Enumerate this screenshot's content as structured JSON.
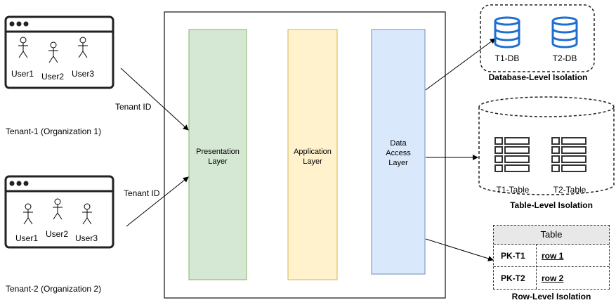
{
  "tenants": [
    {
      "users": [
        "User1",
        "User2",
        "User3"
      ],
      "label": "Tenant-1 (Organization 1)",
      "edge_label": "Tenant ID"
    },
    {
      "users": [
        "User1",
        "User2",
        "User3"
      ],
      "label": "Tenant-2 (Organization 2)",
      "edge_label": "Tenant ID"
    }
  ],
  "layers": {
    "presentation": [
      "Presentation",
      "Layer"
    ],
    "application": [
      "Application",
      "Layer"
    ],
    "data_access": [
      "Data",
      "Access",
      "Layer"
    ]
  },
  "colors": {
    "presentation_fill": "#d5e8d4",
    "presentation_stroke": "#82b366",
    "application_fill": "#fff2cc",
    "application_stroke": "#d6b656",
    "data_fill": "#dae8fc",
    "data_stroke": "#6c8ebf",
    "db_blue": "#1f6fd1"
  },
  "isolation": {
    "database": {
      "dbs": [
        "T1-DB",
        "T2-DB"
      ],
      "caption": "Database-Level Isolation"
    },
    "table": {
      "tables": [
        "T1-Table",
        "T2-Table"
      ],
      "caption": "Table-Level Isolation"
    },
    "row": {
      "header": "Table",
      "rows": [
        {
          "key": "PK-T1",
          "value": "row 1"
        },
        {
          "key": "PK-T2",
          "value": "row 2"
        }
      ],
      "caption": "Row-Level Isolation"
    }
  }
}
